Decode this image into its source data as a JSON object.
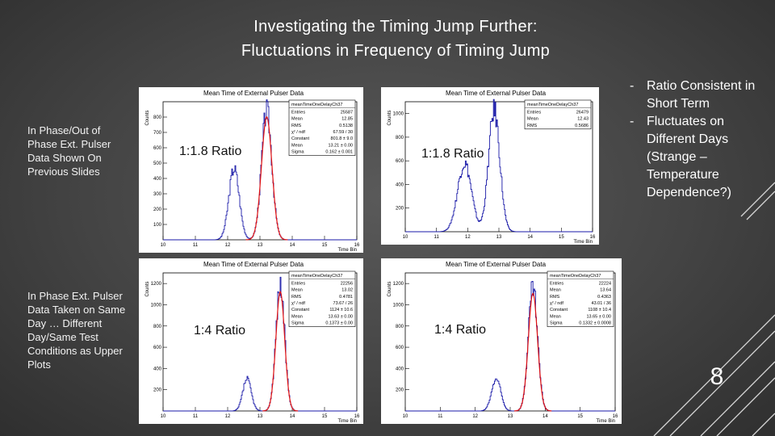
{
  "title": {
    "line1": "Investigating the Timing Jump Further:",
    "line2": "Fluctuations in Frequency of Timing Jump"
  },
  "notes": {
    "top": "In Phase/Out of Phase Ext. Pulser Data Shown On Previous Slides",
    "bottom": "In Phase Ext. Pulser Data Taken on Same Day … Different Day/Same Test Conditions as Upper Plots"
  },
  "bullets": [
    {
      "dash": "-",
      "text": "Ratio Consistent in Short Term"
    },
    {
      "dash": "-",
      "text": "Fluctuates on Different Days (Strange – Temperature Dependence?)"
    }
  ],
  "page_number": "8",
  "chart_data": [
    {
      "type": "histogram",
      "title": "Mean Time of External Pulser Data",
      "xlabel": "Time Bin",
      "ylabel": "Counts",
      "xlim": [
        10,
        16
      ],
      "ylim": [
        0,
        900
      ],
      "xticks": [
        "10",
        "11",
        "12",
        "13",
        "14",
        "15",
        "16"
      ],
      "yticks": [
        "100",
        "200",
        "300",
        "400",
        "500",
        "600",
        "700",
        "800"
      ],
      "annotation": "1:1.8 Ratio",
      "stats": {
        "name": "meanTimeOneDelayCh37",
        "rows": [
          [
            "Entries",
            "25587"
          ],
          [
            "Mean",
            "12.85"
          ],
          [
            "RMS",
            "0.5138"
          ],
          [
            "χ² / ndf",
            "67.59 / 30"
          ],
          [
            "Constant",
            "801.8 ± 9.0"
          ],
          [
            "Mean",
            "13.21 ± 0.00"
          ],
          [
            "Sigma",
            "0.162 ± 0.001"
          ]
        ]
      },
      "peaks": [
        {
          "x": 12.2,
          "height": 465,
          "sigma": 0.16
        },
        {
          "x": 13.21,
          "height": 840,
          "sigma": 0.16
        }
      ],
      "fit": {
        "mean": 13.21,
        "sigma": 0.162,
        "constant": 801.8
      }
    },
    {
      "type": "histogram",
      "title": "Mean Time of External Pulser Data",
      "xlabel": "Time Bin",
      "ylabel": "Counts",
      "xlim": [
        10,
        16
      ],
      "ylim": [
        0,
        1100
      ],
      "xticks": [
        "10",
        "11",
        "12",
        "13",
        "14",
        "15",
        "16"
      ],
      "yticks": [
        "200",
        "400",
        "600",
        "800",
        "1000"
      ],
      "annotation": "1:1.8 Ratio",
      "stats": {
        "name": "meanTimeOneDelayCh37",
        "rows": [
          [
            "Entries",
            "26479"
          ],
          [
            "Mean",
            "12.43"
          ],
          [
            "RMS",
            "0.5686"
          ]
        ]
      },
      "peaks": [
        {
          "x": 11.9,
          "height": 580,
          "sigma": 0.22
        },
        {
          "x": 12.85,
          "height": 1030,
          "sigma": 0.18
        }
      ],
      "fit": null
    },
    {
      "type": "histogram",
      "title": "Mean Time of External Pulser Data",
      "xlabel": "Time Bin",
      "ylabel": "Counts",
      "xlim": [
        10,
        16
      ],
      "ylim": [
        0,
        1300
      ],
      "xticks": [
        "10",
        "11",
        "12",
        "13",
        "14",
        "15",
        "16"
      ],
      "yticks": [
        "200",
        "400",
        "600",
        "800",
        "1000",
        "1200"
      ],
      "annotation": "1:4 Ratio",
      "stats": {
        "name": "meanTimeOneDelayCh37",
        "rows": [
          [
            "Entries",
            "22256"
          ],
          [
            "Mean",
            "13.02"
          ],
          [
            "RMS",
            "0.4781"
          ],
          [
            "χ² / ndf",
            "73.67 / 26"
          ],
          [
            "Constant",
            "1124 ± 10.6"
          ],
          [
            "Mean",
            "13.63 ± 0.00"
          ],
          [
            "Sigma",
            "0.1373 ± 0.00"
          ]
        ]
      },
      "peaks": [
        {
          "x": 12.6,
          "height": 300,
          "sigma": 0.13
        },
        {
          "x": 13.63,
          "height": 1180,
          "sigma": 0.137
        }
      ],
      "fit": {
        "mean": 13.63,
        "sigma": 0.137,
        "constant": 1124
      }
    },
    {
      "type": "histogram",
      "title": "Mean Time of External Pulser Data",
      "xlabel": "Time Bin",
      "ylabel": "Counts",
      "xlim": [
        10,
        16
      ],
      "ylim": [
        0,
        1300
      ],
      "xticks": [
        "10",
        "11",
        "12",
        "13",
        "14",
        "15",
        "16"
      ],
      "yticks": [
        "200",
        "400",
        "600",
        "800",
        "1000",
        "1200"
      ],
      "annotation": "1:4 Ratio",
      "stats": {
        "name": "meanTimeOneDelayCh37",
        "rows": [
          [
            "Entries",
            "22224"
          ],
          [
            "Mean",
            "13.64"
          ],
          [
            "RMS",
            "0.4363"
          ],
          [
            "χ² / ndf",
            "43.01 / 36"
          ],
          [
            "Constant",
            "1108 ± 10.4"
          ],
          [
            "Mean",
            "13.65 ± 0.00"
          ],
          [
            "Sigma",
            "0.1332 ± 0.0008"
          ]
        ]
      },
      "peaks": [
        {
          "x": 12.6,
          "height": 300,
          "sigma": 0.13
        },
        {
          "x": 13.65,
          "height": 1150,
          "sigma": 0.133
        }
      ],
      "fit": {
        "mean": 13.65,
        "sigma": 0.133,
        "constant": 1108
      }
    }
  ]
}
